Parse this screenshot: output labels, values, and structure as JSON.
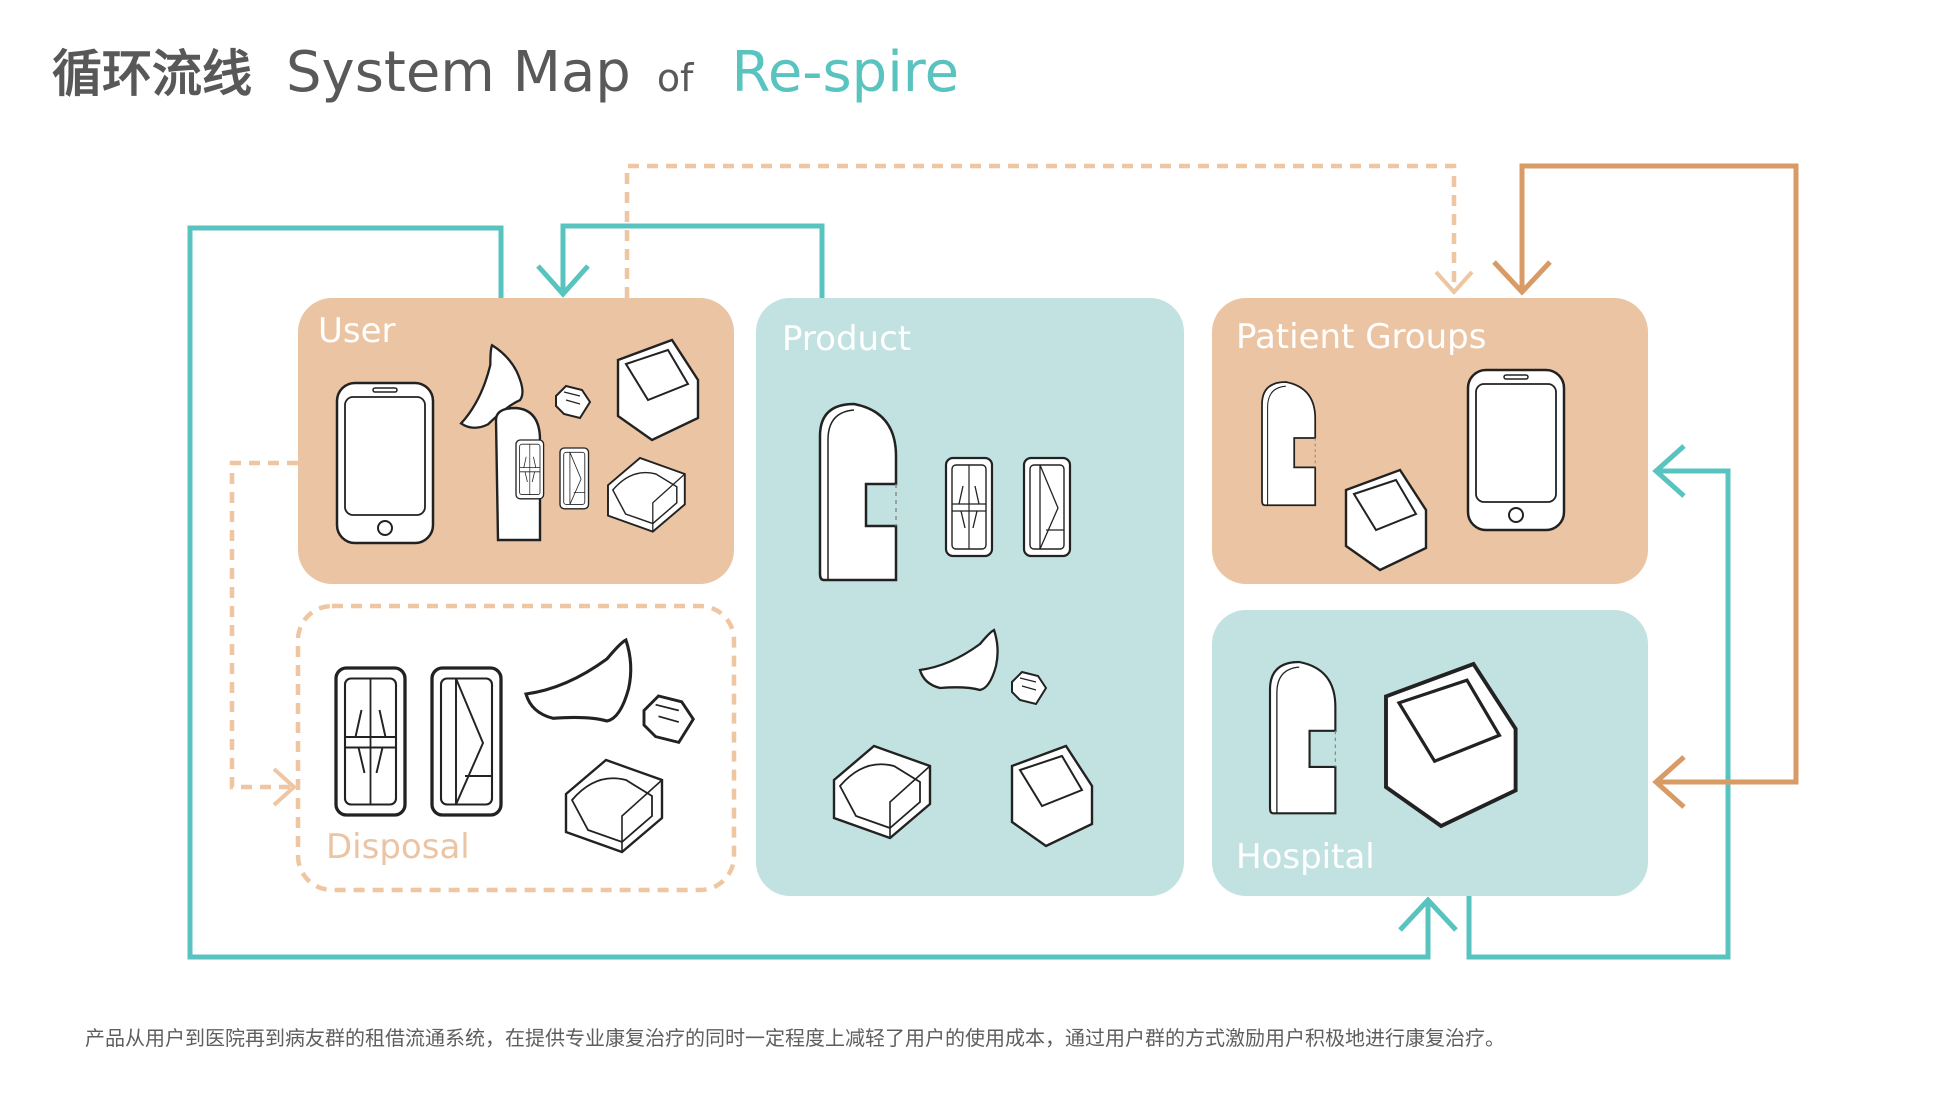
{
  "header": {
    "title_zh": "循环流线",
    "title_en": "System Map",
    "title_of": "of",
    "title_brand": "Re-spire"
  },
  "colors": {
    "teal": "#58c3bf",
    "teal_box": "#c2e2e1",
    "peach": "#ebc4a3",
    "peach_dashed": "#efc6a2",
    "orange": "#d89b66",
    "text_gray": "#595959"
  },
  "nodes": {
    "user": {
      "label": "User"
    },
    "product": {
      "label": "Product"
    },
    "patient_groups": {
      "label": "Patient Groups"
    },
    "hospital": {
      "label": "Hospital"
    },
    "disposal": {
      "label": "Disposal"
    }
  },
  "caption": "产品从用户到医院再到病友群的租借流通系统，在提供专业康复治疗的同时一定程度上减轻了用户的使用成本，通过用户群的方式激励用户积极地进行康复治疗。"
}
